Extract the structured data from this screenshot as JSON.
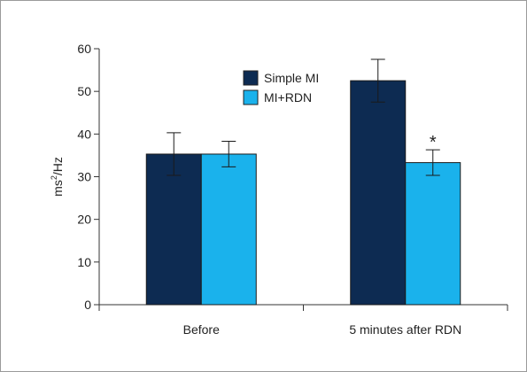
{
  "chart_data": {
    "type": "bar",
    "categories": [
      "Before",
      "5 minutes after RDN"
    ],
    "series": [
      {
        "name": "Simple MI",
        "values": [
          35.3,
          52.5
        ],
        "error": [
          5.0,
          5.0
        ],
        "color": "#0d2b52"
      },
      {
        "name": "MI+RDN",
        "values": [
          35.3,
          33.3
        ],
        "error": [
          3.0,
          3.0
        ],
        "color": "#1ab2ec"
      }
    ],
    "ylabel_main": "ms",
    "ylabel_sup": "2",
    "ylabel_tail": "/Hz",
    "ylim": [
      0,
      60
    ],
    "yticks": [
      "0",
      "10",
      "20",
      "30",
      "40",
      "50",
      "60"
    ],
    "annotations": [
      {
        "text": "*",
        "category": 1,
        "series": 1
      }
    ],
    "grid": false,
    "legend_position": "top-center"
  }
}
